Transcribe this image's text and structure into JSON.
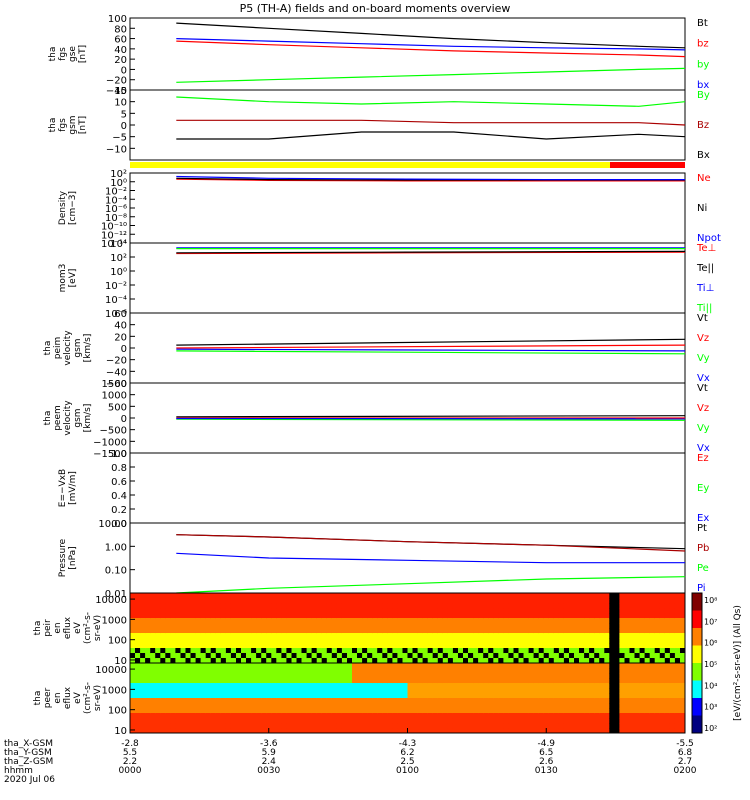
{
  "title": "P5 (TH-A) fields and on-board moments overview",
  "chart_data": {
    "type": "line",
    "x_time_labels": [
      "0000",
      "0030",
      "0100",
      "0130",
      "0200"
    ],
    "x_range_minutes": [
      0,
      120
    ],
    "date": "2020 Jul 06",
    "ephemeris": {
      "rows": [
        {
          "label": "tha_X-GSM",
          "values": [
            "-2.8",
            "-3.6",
            "-4.3",
            "-4.9",
            "-5.5"
          ]
        },
        {
          "label": "tha_Y-GSM",
          "values": [
            "5.5",
            "5.9",
            "6.2",
            "6.5",
            "6.8"
          ]
        },
        {
          "label": "tha_Z-GSM",
          "values": [
            "2.2",
            "2.4",
            "2.5",
            "2.6",
            "2.7"
          ]
        },
        {
          "label": "hhmm",
          "values": [
            "0000",
            "0030",
            "0100",
            "0130",
            "0200"
          ]
        }
      ]
    },
    "panels": [
      {
        "id": "fgs-gse",
        "ylabel": [
          "tha",
          "fgs",
          "gse",
          "[nT]"
        ],
        "ylim": [
          -40,
          100
        ],
        "ticks": [
          100,
          80,
          60,
          40,
          20,
          0,
          -20,
          -40
        ],
        "tick_labels": [
          "100",
          "80",
          "60",
          "40",
          "20",
          "0",
          "−20",
          "−40"
        ],
        "series": [
          {
            "name": "Bt",
            "color": "#000000",
            "x": [
              10,
              30,
              50,
              70,
              90,
              110,
              120
            ],
            "y": [
              90,
              80,
              70,
              60,
              52,
              45,
              42
            ]
          },
          {
            "name": "bz",
            "color": "#ff0000",
            "x": [
              10,
              30,
              50,
              70,
              90,
              110,
              120
            ],
            "y": [
              55,
              48,
              42,
              36,
              32,
              28,
              25
            ]
          },
          {
            "name": "by",
            "color": "#00ff00",
            "x": [
              10,
              30,
              50,
              70,
              90,
              110,
              120
            ],
            "y": [
              -25,
              -20,
              -15,
              -10,
              -5,
              0,
              2
            ]
          },
          {
            "name": "bx",
            "color": "#0000ff",
            "x": [
              10,
              30,
              50,
              70,
              90,
              110,
              120
            ],
            "y": [
              60,
              55,
              50,
              45,
              42,
              40,
              38
            ]
          }
        ]
      },
      {
        "id": "fgs-gsm",
        "ylabel": [
          "tha",
          "fgs",
          "gsm",
          "[nT]"
        ],
        "ylim": [
          -15,
          15
        ],
        "ticks": [
          15,
          10,
          5,
          0,
          -5,
          -10
        ],
        "tick_labels": [
          "15",
          "10",
          "5",
          "0",
          "−5",
          "−10"
        ],
        "series": [
          {
            "name": "By",
            "color": "#00ff00",
            "x": [
              10,
              30,
              50,
              70,
              90,
              110,
              120
            ],
            "y": [
              12,
              10,
              9,
              10,
              9,
              8,
              10
            ]
          },
          {
            "name": "Bz",
            "color": "#aa0000",
            "x": [
              10,
              30,
              50,
              70,
              90,
              110,
              120
            ],
            "y": [
              2,
              2,
              2,
              1,
              1,
              1,
              0
            ]
          },
          {
            "name": "Bx",
            "color": "#000000",
            "x": [
              10,
              30,
              50,
              70,
              90,
              110,
              120
            ],
            "y": [
              -6,
              -6,
              -3,
              -3,
              -6,
              -4,
              -5
            ]
          }
        ]
      },
      {
        "id": "density",
        "ylabel": [
          "Density",
          "[cm−3]"
        ],
        "scale": "log",
        "ylim_exp": [
          -14,
          2
        ],
        "ticks": [
          2,
          0,
          -2,
          -4,
          -6,
          -8,
          -10,
          -12,
          -14
        ],
        "tick_labels": [
          "10²",
          "10⁰",
          "10⁻²",
          "10⁻⁴",
          "10⁻⁶",
          "10⁻⁸",
          "10⁻¹⁰",
          "10⁻¹²",
          "10⁻¹⁴"
        ],
        "series": [
          {
            "name": "Ne",
            "color": "#ff0000",
            "x": [
              10,
              30,
              60,
              90,
              120
            ],
            "y_exp": [
              0.6,
              0.3,
              0.2,
              0.2,
              0.2
            ]
          },
          {
            "name": "Ni",
            "color": "#000000",
            "x": [
              10,
              30,
              60,
              90,
              120
            ],
            "y_exp": [
              0.8,
              0.5,
              0.4,
              0.4,
              0.4
            ]
          },
          {
            "name": "Npot",
            "color": "#0000ff",
            "x": [
              10,
              30,
              60,
              90,
              120
            ],
            "y_exp": [
              1.2,
              0.8,
              0.6,
              0.5,
              0.5
            ]
          }
        ]
      },
      {
        "id": "temperature",
        "ylabel": [
          "mom3",
          "[eV]"
        ],
        "scale": "log",
        "ylim_exp": [
          -6,
          4
        ],
        "ticks": [
          4,
          2,
          0,
          -2,
          -4,
          -6
        ],
        "tick_labels": [
          "10⁴",
          "10²",
          "10⁰",
          "10⁻²",
          "10⁻⁴",
          "10⁻⁶"
        ],
        "series": [
          {
            "name": "Te⊥",
            "color": "#ff0000",
            "x": [
              10,
              60,
              120
            ],
            "y_exp": [
              2.5,
              2.6,
              2.7
            ]
          },
          {
            "name": "Te||",
            "color": "#000000",
            "x": [
              10,
              60,
              120
            ],
            "y_exp": [
              2.6,
              2.7,
              2.8
            ]
          },
          {
            "name": "Ti⊥",
            "color": "#0000ff",
            "x": [
              10,
              60,
              120
            ],
            "y_exp": [
              3.3,
              3.3,
              3.3
            ]
          },
          {
            "name": "Ti||",
            "color": "#00ff00",
            "x": [
              10,
              60,
              120
            ],
            "y_exp": [
              3.2,
              3.2,
              3.2
            ]
          }
        ]
      },
      {
        "id": "peim-velocity",
        "ylabel": [
          "tha",
          "peim",
          "velocity",
          "gsm",
          "[km/s]"
        ],
        "ylim": [
          -60,
          60
        ],
        "ticks": [
          60,
          40,
          20,
          0,
          -20,
          -40,
          -60
        ],
        "tick_labels": [
          "60",
          "40",
          "20",
          "0",
          "−20",
          "−40",
          "−60"
        ],
        "series": [
          {
            "name": "Vt",
            "color": "#000000",
            "x": [
              10,
              120
            ],
            "y": [
              5,
              15
            ]
          },
          {
            "name": "Vz",
            "color": "#ff0000",
            "x": [
              10,
              120
            ],
            "y": [
              0,
              5
            ]
          },
          {
            "name": "Vy",
            "color": "#00ff00",
            "x": [
              10,
              120
            ],
            "y": [
              -5,
              -10
            ]
          },
          {
            "name": "Vx",
            "color": "#0000ff",
            "x": [
              10,
              120
            ],
            "y": [
              -2,
              -5
            ]
          }
        ]
      },
      {
        "id": "peem-velocity",
        "ylabel": [
          "tha",
          "peem",
          "velocity",
          "gsm",
          "[km/s]"
        ],
        "ylim": [
          -1500,
          1500
        ],
        "ticks": [
          1500,
          1000,
          500,
          0,
          -500,
          -1000,
          -1500
        ],
        "tick_labels": [
          "1500",
          "1000",
          "500",
          "0",
          "−500",
          "−1000",
          "−1500"
        ],
        "series": [
          {
            "name": "Vt",
            "color": "#000000",
            "x": [
              10,
              120
            ],
            "y": [
              50,
              100
            ]
          },
          {
            "name": "Vz",
            "color": "#ff0000",
            "x": [
              10,
              120
            ],
            "y": [
              0,
              0
            ]
          },
          {
            "name": "Vy",
            "color": "#00ff00",
            "x": [
              10,
              120
            ],
            "y": [
              -50,
              -100
            ]
          },
          {
            "name": "Vx",
            "color": "#0000ff",
            "x": [
              10,
              120
            ],
            "y": [
              -20,
              -40
            ]
          }
        ]
      },
      {
        "id": "efield",
        "ylabel": [
          "E=−VxB",
          "[mV/m]"
        ],
        "ylim": [
          0,
          1
        ],
        "ticks": [
          1,
          0.8,
          0.6,
          0.4,
          0.2,
          0
        ],
        "tick_labels": [
          "1.0",
          "0.8",
          "0.6",
          "0.4",
          "0.2",
          "0.0"
        ],
        "series": [
          {
            "name": "Ez",
            "color": "#ff0000",
            "x": [],
            "y": []
          },
          {
            "name": "Ey",
            "color": "#00ff00",
            "x": [],
            "y": []
          },
          {
            "name": "Ex",
            "color": "#0000ff",
            "x": [],
            "y": []
          }
        ]
      },
      {
        "id": "pressure",
        "ylabel": [
          "Pressure",
          "[nPa]"
        ],
        "scale": "log",
        "ylim_exp": [
          -2,
          1
        ],
        "ticks": [
          1,
          0,
          -1,
          -2
        ],
        "tick_labels": [
          "10.00",
          "1.00",
          "0.10",
          "0.01"
        ],
        "series": [
          {
            "name": "Pt",
            "color": "#000000",
            "x": [
              10,
              30,
              60,
              90,
              120
            ],
            "y_exp": [
              0.5,
              0.4,
              0.2,
              0.05,
              -0.1
            ]
          },
          {
            "name": "Pb",
            "color": "#aa0000",
            "x": [
              10,
              30,
              60,
              90,
              120
            ],
            "y_exp": [
              0.5,
              0.4,
              0.2,
              0.05,
              -0.2
            ]
          },
          {
            "name": "Pe",
            "color": "#00ff00",
            "x": [
              10,
              30,
              60,
              90,
              120
            ],
            "y_exp": [
              -2,
              -1.8,
              -1.6,
              -1.4,
              -1.3
            ]
          },
          {
            "name": "Pi",
            "color": "#0000ff",
            "x": [
              10,
              30,
              60,
              90,
              120
            ],
            "y_exp": [
              -0.3,
              -0.5,
              -0.6,
              -0.7,
              -0.7
            ]
          }
        ]
      },
      {
        "id": "peir-spectrogram",
        "type": "heatmap",
        "ylabel": [
          "tha",
          "peir",
          "en",
          "eflux",
          "eV",
          "(cm²-s-",
          "sr-eV)"
        ],
        "ticks": [
          10000,
          1000,
          100,
          10
        ],
        "tick_labels": [
          "10000",
          "1000",
          "100",
          "10"
        ]
      },
      {
        "id": "peer-spectrogram",
        "type": "heatmap",
        "ylabel": [
          "tha",
          "peer",
          "en",
          "eflux",
          "eV",
          "(cm²-s-",
          "sr-eV)"
        ],
        "ticks": [
          10000,
          1000,
          100,
          10
        ],
        "tick_labels": [
          "10000",
          "1000",
          "100",
          "10"
        ]
      }
    ],
    "colorbar": {
      "label": "[eV/(cm²-s-sr-eV)] (All Qs)",
      "tick_labels": [
        "10⁸",
        "10⁷",
        "10⁶",
        "10⁵",
        "10⁴",
        "10³",
        "10²"
      ],
      "colors": [
        "#800000",
        "#ff0000",
        "#ff8000",
        "#ffff00",
        "#80ff00",
        "#00ffff",
        "#0000ff",
        "#000080"
      ]
    }
  }
}
